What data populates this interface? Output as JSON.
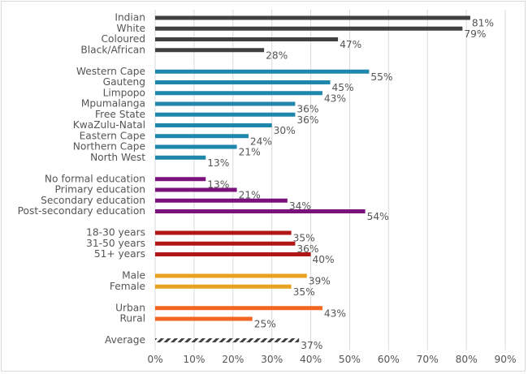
{
  "chart_data": {
    "type": "bar",
    "orientation": "horizontal",
    "title": "",
    "xlabel": "",
    "ylabel": "",
    "xlim": [
      0,
      90
    ],
    "tick_step": 10,
    "tick_suffix": "%",
    "grid": true,
    "legend": "none",
    "groups": [
      {
        "color": "#404040",
        "items": [
          {
            "label": "Indian",
            "value": 81,
            "value_label": "81%"
          },
          {
            "label": "White",
            "value": 79,
            "value_label": "79%"
          },
          {
            "label": "Coloured",
            "value": 47,
            "value_label": "47%"
          },
          {
            "label": "Black/African",
            "value": 28,
            "value_label": "28%"
          }
        ]
      },
      {
        "color": "#1f86ac",
        "items": [
          {
            "label": "Western Cape",
            "value": 55,
            "value_label": "55%"
          },
          {
            "label": "Gauteng",
            "value": 45,
            "value_label": "45%"
          },
          {
            "label": "Limpopo",
            "value": 43,
            "value_label": "43%"
          },
          {
            "label": "Mpumalanga",
            "value": 36,
            "value_label": "36%"
          },
          {
            "label": "Free State",
            "value": 36,
            "value_label": "36%"
          },
          {
            "label": "KwaZulu-Natal",
            "value": 30,
            "value_label": "30%"
          },
          {
            "label": "Eastern Cape",
            "value": 24,
            "value_label": "24%"
          },
          {
            "label": "Northern Cape",
            "value": 21,
            "value_label": "21%"
          },
          {
            "label": "North West",
            "value": 13,
            "value_label": "13%"
          }
        ]
      },
      {
        "color": "#7b127b",
        "items": [
          {
            "label": "No formal education",
            "value": 13,
            "value_label": "13%"
          },
          {
            "label": "Primary education",
            "value": 21,
            "value_label": "21%"
          },
          {
            "label": "Secondary education",
            "value": 34,
            "value_label": "34%"
          },
          {
            "label": "Post-secondary education",
            "value": 54,
            "value_label": "54%"
          }
        ]
      },
      {
        "color": "#b01616",
        "items": [
          {
            "label": "18-30 years",
            "value": 35,
            "value_label": "35%"
          },
          {
            "label": "31-50 years",
            "value": 36,
            "value_label": "36%"
          },
          {
            "label": "51+ years",
            "value": 40,
            "value_label": "40%"
          }
        ]
      },
      {
        "color": "#e9a21f",
        "items": [
          {
            "label": "Male",
            "value": 39,
            "value_label": "39%"
          },
          {
            "label": "Female",
            "value": 35,
            "value_label": "35%"
          }
        ]
      },
      {
        "color": "#f26522",
        "items": [
          {
            "label": "Urban",
            "value": 43,
            "value_label": "43%"
          },
          {
            "label": "Rural",
            "value": 25,
            "value_label": "25%"
          }
        ]
      },
      {
        "color": "#404040",
        "pattern": "hatched",
        "items": [
          {
            "label": "Average",
            "value": 37,
            "value_label": "37%"
          }
        ]
      }
    ]
  }
}
